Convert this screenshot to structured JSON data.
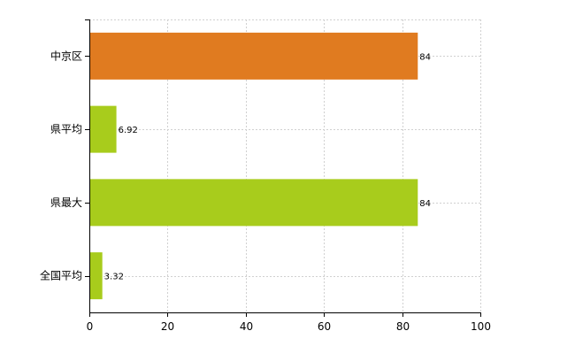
{
  "chart_data": {
    "type": "bar",
    "orientation": "horizontal",
    "categories": [
      "中京区",
      "県平均",
      "県最大",
      "全国平均"
    ],
    "values": [
      84,
      6.92,
      84,
      3.32
    ],
    "data_labels": [
      "84",
      "6.92",
      "84",
      "3.32"
    ],
    "bar_colors": [
      "#e07b20",
      "#a8cc1c",
      "#a8cc1c",
      "#a8cc1c"
    ],
    "xlim": [
      0,
      100
    ],
    "xticks": [
      0,
      20,
      40,
      60,
      80,
      100
    ],
    "xtick_labels": [
      "0",
      "20",
      "40",
      "60",
      "80",
      "100"
    ],
    "grid": true,
    "legend": "none",
    "title": "",
    "xlabel": "",
    "ylabel": ""
  }
}
